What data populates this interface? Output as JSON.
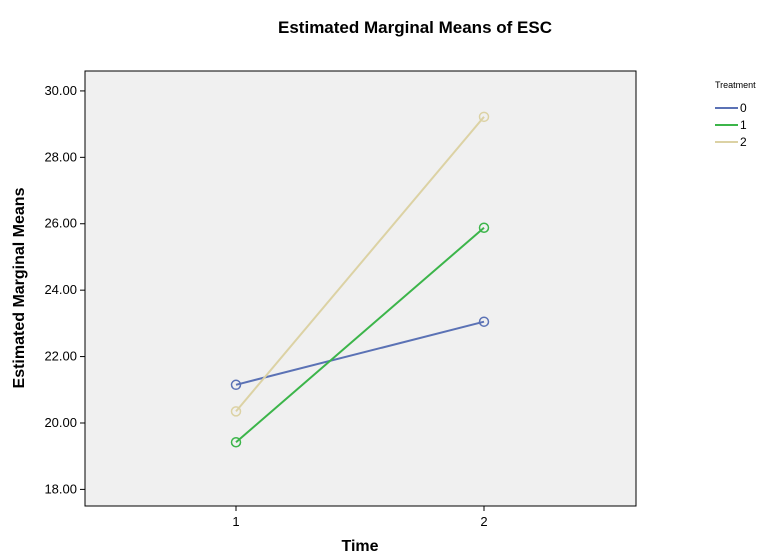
{
  "chart_data": {
    "type": "line",
    "title": "Estimated Marginal Means of ESC",
    "xlabel": "Time",
    "ylabel": "Estimated Marginal Means",
    "categories": [
      "1",
      "2"
    ],
    "ylim": [
      17.5,
      30.6
    ],
    "yticks": [
      18,
      20,
      22,
      24,
      26,
      28,
      30
    ],
    "ytick_labels": [
      "18.00",
      "20.00",
      "22.00",
      "24.00",
      "26.00",
      "28.00",
      "30.00"
    ],
    "grid": false,
    "legend": {
      "title": "Treatment",
      "placement": "top-right-outside"
    },
    "series": [
      {
        "name": "0",
        "color": "#5b72b5",
        "values": [
          21.15,
          23.05
        ]
      },
      {
        "name": "1",
        "color": "#3cb54a",
        "values": [
          19.42,
          25.88
        ]
      },
      {
        "name": "2",
        "color": "#dcd2a4",
        "values": [
          20.35,
          29.22
        ]
      }
    ],
    "plot_background": "#f0f0f0"
  }
}
